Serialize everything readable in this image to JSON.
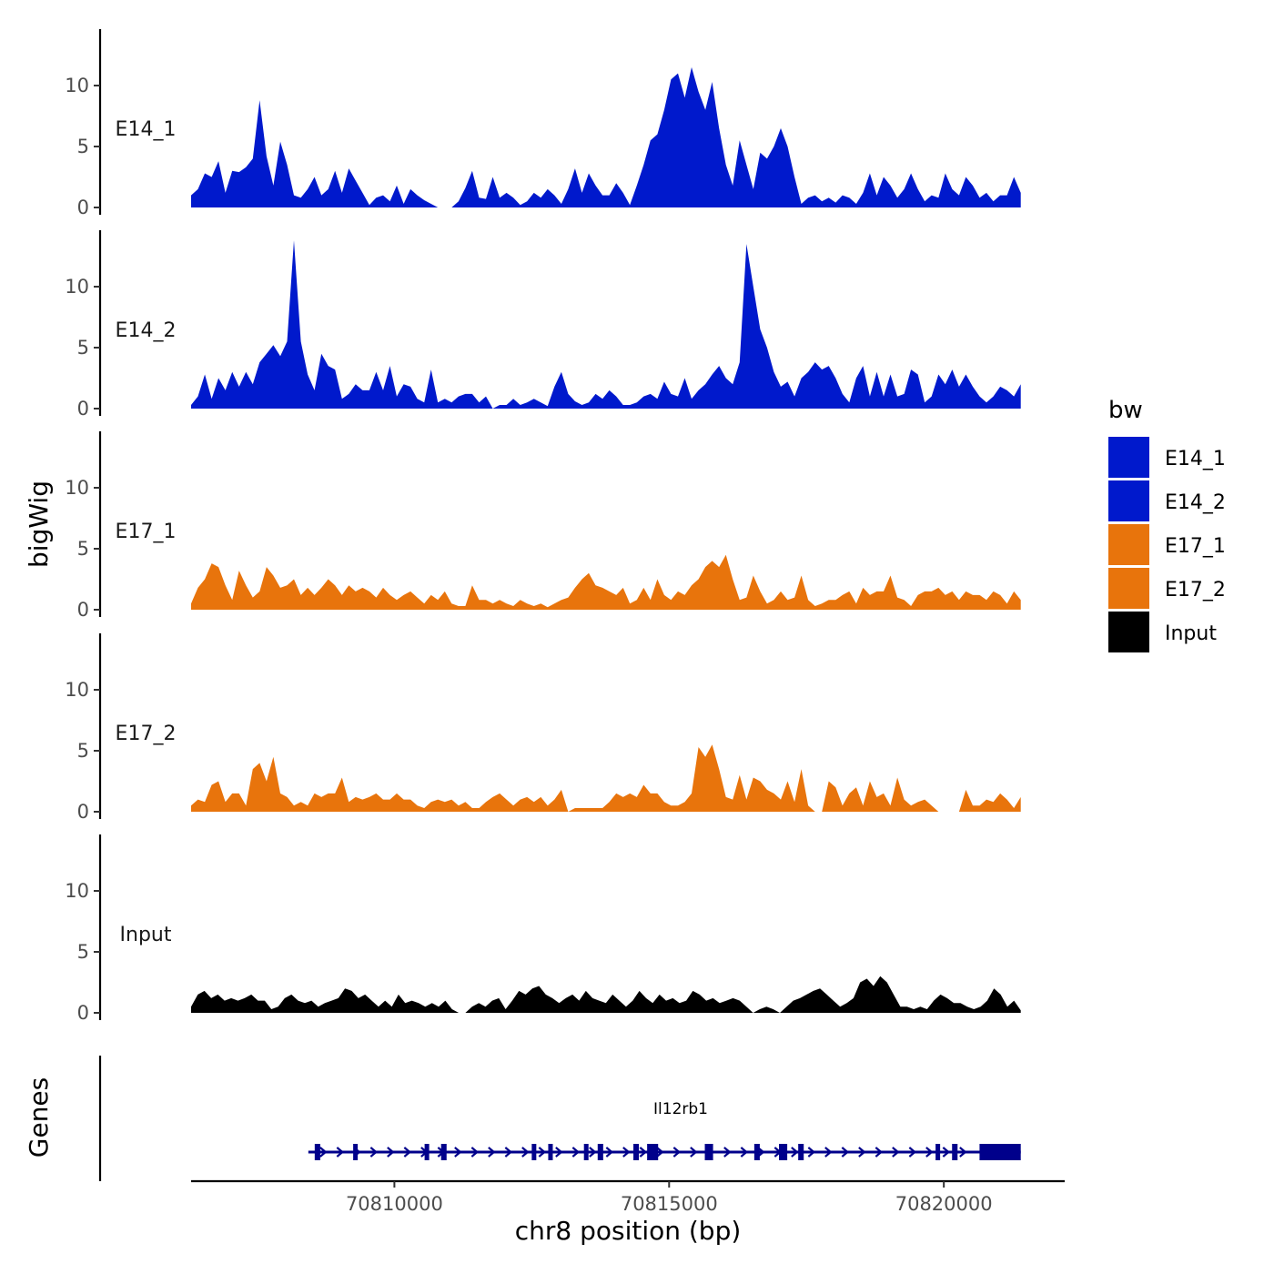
{
  "chart_data": {
    "type": "area",
    "ylabel": "bigWig",
    "xlabel": "chr8 position (bp)",
    "xlim": [
      70806300,
      70822200
    ],
    "data_x_range": [
      70806300,
      70821400
    ],
    "x_ticks": [
      70810000,
      70815000,
      70820000
    ],
    "x_tick_labels": [
      "70810000",
      "70815000",
      "70820000"
    ],
    "ylim": [
      0,
      14.5
    ],
    "y_ticks": [
      0,
      5,
      10
    ],
    "y_tick_labels": [
      "0",
      "5",
      "10"
    ],
    "legend": {
      "title": "bw",
      "placement": "right",
      "entries": [
        {
          "label": "E14_1",
          "color": "#0019CC"
        },
        {
          "label": "E14_2",
          "color": "#0019CC"
        },
        {
          "label": "E17_1",
          "color": "#E8740C"
        },
        {
          "label": "E17_2",
          "color": "#E8740C"
        },
        {
          "label": "Input",
          "color": "#000000"
        }
      ]
    },
    "series": [
      {
        "name": "E14_1",
        "color": "#0019CC",
        "values": [
          1.0,
          1.5,
          2.8,
          2.5,
          3.8,
          1.2,
          3.0,
          2.9,
          3.3,
          4.0,
          8.8,
          4.2,
          1.8,
          5.4,
          3.5,
          1.0,
          0.8,
          1.5,
          2.5,
          1.0,
          1.5,
          3.0,
          1.2,
          3.2,
          2.2,
          1.2,
          0.2,
          0.8,
          1.0,
          0.5,
          1.8,
          0.3,
          1.5,
          1.0,
          0.6,
          0.3,
          0,
          0,
          0,
          0.5,
          1.6,
          3.0,
          0.8,
          0.7,
          2.5,
          0.8,
          1.2,
          0.8,
          0.2,
          0.5,
          1.2,
          0.8,
          1.5,
          1.0,
          0.3,
          1.5,
          3.2,
          1.2,
          2.8,
          1.8,
          1.0,
          1.0,
          2.0,
          1.2,
          0.2,
          1.8,
          3.5,
          5.5,
          6.0,
          8.0,
          10.5,
          11.0,
          9.0,
          11.5,
          9.5,
          8.0,
          10.3,
          6.5,
          3.5,
          1.8,
          5.5,
          3.5,
          1.5,
          4.5,
          4.0,
          5.0,
          6.5,
          5.0,
          2.5,
          0.3,
          0.8,
          1.0,
          0.5,
          0.8,
          0.4,
          1.0,
          0.8,
          0.3,
          1.2,
          2.8,
          1.0,
          2.5,
          1.8,
          0.8,
          1.5,
          2.8,
          1.5,
          0.5,
          1.0,
          0.8,
          2.8,
          1.5,
          1.0,
          2.5,
          1.8,
          0.8,
          1.2,
          0.5,
          1.0,
          1.0,
          2.5,
          1.2
        ]
      },
      {
        "name": "E14_2",
        "color": "#0019CC",
        "values": [
          0.3,
          1.0,
          2.8,
          0.8,
          2.5,
          1.5,
          3.0,
          1.8,
          3.0,
          2.0,
          3.8,
          4.5,
          5.2,
          4.3,
          5.5,
          13.8,
          5.5,
          2.8,
          1.5,
          4.5,
          3.5,
          3.2,
          0.8,
          1.2,
          2.0,
          1.5,
          1.5,
          3.0,
          1.5,
          3.5,
          1.0,
          2.0,
          1.8,
          0.8,
          0.5,
          3.2,
          0.5,
          0.8,
          0.5,
          1.0,
          1.2,
          1.2,
          0.5,
          1.0,
          0,
          0.3,
          0.3,
          0.8,
          0.3,
          0.5,
          0.8,
          0.5,
          0.2,
          1.8,
          3.0,
          1.2,
          0.6,
          0.3,
          0.5,
          1.2,
          0.8,
          1.5,
          1.0,
          0.3,
          0.3,
          0.5,
          1.0,
          1.2,
          0.8,
          2.2,
          1.2,
          1.0,
          2.5,
          0.8,
          1.5,
          2.0,
          2.8,
          3.5,
          2.5,
          2.0,
          3.8,
          13.5,
          10.0,
          6.5,
          5.0,
          3.0,
          1.8,
          2.2,
          1.0,
          2.5,
          3.0,
          3.8,
          3.2,
          3.5,
          2.5,
          1.2,
          0.5,
          2.5,
          3.5,
          1.0,
          3.0,
          1.0,
          2.8,
          1.0,
          1.2,
          3.2,
          2.8,
          0.5,
          1.0,
          2.8,
          2.0,
          3.2,
          1.8,
          2.8,
          1.8,
          1.0,
          0.5,
          1.0,
          1.8,
          1.5,
          1.0,
          2.0
        ]
      },
      {
        "name": "E17_1",
        "color": "#E8740C",
        "values": [
          0.5,
          1.8,
          2.5,
          3.8,
          3.5,
          2.0,
          0.8,
          3.2,
          2.0,
          1.0,
          1.5,
          3.5,
          2.8,
          1.8,
          2.0,
          2.5,
          1.2,
          1.8,
          1.2,
          1.8,
          2.5,
          2.0,
          1.2,
          2.0,
          1.5,
          1.8,
          1.5,
          1.0,
          1.8,
          1.2,
          0.8,
          1.2,
          1.5,
          1.0,
          0.5,
          1.2,
          0.8,
          1.5,
          0.5,
          0.3,
          0.3,
          2.0,
          0.8,
          0.8,
          0.5,
          0.8,
          0.5,
          0.3,
          0.8,
          0.5,
          0.3,
          0.5,
          0.2,
          0.5,
          0.8,
          1.0,
          1.8,
          2.5,
          3.0,
          2.0,
          1.8,
          1.5,
          1.2,
          1.8,
          0.5,
          0.8,
          1.8,
          0.8,
          2.5,
          1.2,
          0.8,
          1.5,
          1.2,
          2.0,
          2.5,
          3.5,
          4.0,
          3.5,
          4.5,
          2.5,
          0.8,
          1.0,
          2.8,
          1.5,
          0.5,
          0.8,
          1.5,
          0.8,
          1.0,
          2.8,
          0.8,
          0.3,
          0.5,
          0.8,
          0.8,
          1.2,
          1.5,
          0.5,
          1.8,
          1.2,
          1.5,
          1.5,
          2.8,
          1.0,
          0.8,
          0.3,
          1.2,
          1.5,
          1.5,
          1.8,
          1.2,
          1.5,
          0.8,
          1.5,
          1.2,
          1.2,
          0.8,
          1.5,
          1.2,
          0.5,
          1.5,
          0.8
        ]
      },
      {
        "name": "E17_2",
        "color": "#E8740C",
        "values": [
          0.5,
          1.0,
          0.8,
          2.2,
          2.5,
          0.8,
          1.5,
          1.5,
          0.5,
          3.5,
          4.0,
          2.5,
          4.5,
          1.5,
          1.2,
          0.5,
          0.8,
          0.5,
          1.5,
          1.2,
          1.5,
          1.5,
          2.8,
          0.8,
          1.2,
          1.0,
          1.2,
          1.5,
          1.0,
          1.0,
          1.5,
          1.0,
          1.0,
          0.5,
          0.3,
          0.8,
          1.0,
          0.8,
          1.0,
          0.5,
          0.8,
          0.3,
          0.3,
          0.8,
          1.2,
          1.5,
          1.0,
          0.5,
          1.0,
          1.2,
          0.8,
          1.2,
          0.5,
          1.0,
          1.8,
          0,
          0.3,
          0.3,
          0.3,
          0.3,
          0.3,
          0.8,
          1.5,
          1.2,
          1.5,
          1.2,
          2.2,
          1.5,
          1.5,
          0.8,
          0.5,
          0.5,
          0.8,
          1.5,
          5.3,
          4.5,
          5.5,
          3.5,
          1.2,
          1.0,
          3.0,
          1.0,
          2.8,
          2.5,
          1.8,
          1.5,
          1.0,
          2.5,
          0.8,
          3.5,
          0.5,
          0,
          0,
          2.5,
          2.0,
          0.5,
          1.5,
          2.0,
          0.5,
          2.5,
          1.2,
          1.5,
          0.5,
          2.8,
          1.0,
          0.5,
          0.8,
          1.0,
          0.5,
          0,
          0,
          0,
          0,
          1.8,
          0.5,
          0.5,
          1.0,
          0.8,
          1.5,
          1.0,
          0.3,
          1.2
        ]
      },
      {
        "name": "Input",
        "color": "#000000",
        "values": [
          0.5,
          1.5,
          1.8,
          1.2,
          1.5,
          1.0,
          1.2,
          1.0,
          1.2,
          1.5,
          1.0,
          1.0,
          0.3,
          0.5,
          1.2,
          1.5,
          1.0,
          0.8,
          1.0,
          0.5,
          0.8,
          1.0,
          1.2,
          2.0,
          1.8,
          1.2,
          1.5,
          1.0,
          0.5,
          1.0,
          0.5,
          1.5,
          0.8,
          1.0,
          0.8,
          0.5,
          0.8,
          0.5,
          1.0,
          0.3,
          0,
          0,
          0.5,
          0.8,
          0.5,
          1.0,
          1.2,
          0.3,
          1.0,
          1.8,
          1.5,
          2.0,
          2.2,
          1.5,
          1.2,
          0.8,
          1.2,
          1.5,
          1.0,
          1.8,
          1.2,
          1.0,
          0.8,
          1.5,
          1.0,
          0.5,
          1.0,
          1.8,
          1.2,
          0.8,
          1.5,
          1.0,
          1.2,
          0.8,
          1.0,
          1.8,
          1.5,
          1.0,
          1.2,
          0.8,
          1.0,
          1.2,
          1.0,
          0.5,
          0,
          0.3,
          0.5,
          0.3,
          0,
          0.5,
          1.0,
          1.2,
          1.5,
          1.8,
          2.0,
          1.5,
          1.0,
          0.5,
          0.8,
          1.2,
          2.5,
          2.8,
          2.2,
          3.0,
          2.5,
          1.5,
          0.5,
          0.5,
          0.3,
          0.5,
          0.3,
          1.0,
          1.5,
          1.2,
          0.8,
          0.8,
          0.5,
          0.3,
          0.5,
          1.0,
          2.0,
          1.5,
          0.5,
          1.0,
          0.2
        ]
      }
    ],
    "genes_track": {
      "ylabel": "Genes",
      "gene_name": "Il12rb1",
      "strand": "+",
      "color": "#00008B",
      "start": 70808500,
      "end": 70821400,
      "exons": [
        [
          70808550,
          70808650
        ],
        [
          70809250,
          70809300
        ],
        [
          70810550,
          70810600
        ],
        [
          70810850,
          70810950
        ],
        [
          70812500,
          70812550
        ],
        [
          70812800,
          70812850
        ],
        [
          70813450,
          70813500
        ],
        [
          70813700,
          70813800
        ],
        [
          70814350,
          70814450
        ],
        [
          70814600,
          70814800
        ],
        [
          70815650,
          70815800
        ],
        [
          70816550,
          70816650
        ],
        [
          70817000,
          70817150
        ],
        [
          70817350,
          70817450
        ],
        [
          70819850,
          70819900
        ],
        [
          70820150,
          70820250
        ],
        [
          70820650,
          70821400
        ]
      ]
    }
  }
}
